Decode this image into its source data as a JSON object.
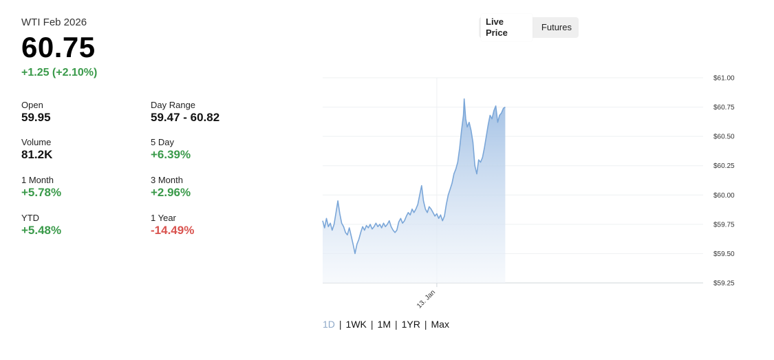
{
  "quote": {
    "instrument": "WTI Feb 2026",
    "price": "60.75",
    "change": "+1.25 (+2.10%)",
    "change_color": "#3a9a4a"
  },
  "stats": [
    {
      "label": "Open",
      "value": "59.95",
      "tone": "neutral"
    },
    {
      "label": "Day Range",
      "value": "59.47 - 60.82",
      "tone": "neutral"
    },
    {
      "label": "Volume",
      "value": "81.2K",
      "tone": "neutral"
    },
    {
      "label": "5 Day",
      "value": "+6.39%",
      "tone": "pos"
    },
    {
      "label": "1 Month",
      "value": "+5.78%",
      "tone": "pos"
    },
    {
      "label": "3 Month",
      "value": "+2.96%",
      "tone": "pos"
    },
    {
      "label": "YTD",
      "value": "+5.48%",
      "tone": "pos"
    },
    {
      "label": "1 Year",
      "value": "-14.49%",
      "tone": "neg"
    }
  ],
  "toggle": {
    "options": [
      "Live Price",
      "Futures"
    ],
    "selected": "Live Price"
  },
  "range_selector": {
    "options": [
      "1D",
      "1WK",
      "1M",
      "1YR",
      "Max"
    ],
    "selected": "1D"
  },
  "colors": {
    "positive": "#3a9a4a",
    "negative": "#d9534f",
    "line": "#7aa6d8",
    "area_top": "#9dbde3",
    "area_bottom": "#f2f6fb",
    "active_range": "#8fa9c8"
  },
  "chart_data": {
    "type": "area",
    "title": "",
    "xlabel": "",
    "ylabel": "",
    "x_ticks": [
      "13. Jan"
    ],
    "x_tick_positions": [
      0.3
    ],
    "y_tick_labels": [
      "$61.00",
      "$60.75",
      "$60.50",
      "$60.25",
      "$60.00",
      "$59.75",
      "$59.50",
      "$59.25"
    ],
    "ylim": [
      59.25,
      61.0
    ],
    "grid": true,
    "y_axis_side": "right",
    "session_extent": 0.48,
    "series": [
      {
        "points": [
          [
            0.0,
            59.78
          ],
          [
            0.005,
            59.72
          ],
          [
            0.01,
            59.8
          ],
          [
            0.015,
            59.73
          ],
          [
            0.02,
            59.76
          ],
          [
            0.025,
            59.7
          ],
          [
            0.03,
            59.75
          ],
          [
            0.035,
            59.85
          ],
          [
            0.04,
            59.95
          ],
          [
            0.045,
            59.84
          ],
          [
            0.05,
            59.76
          ],
          [
            0.055,
            59.73
          ],
          [
            0.06,
            59.68
          ],
          [
            0.065,
            59.66
          ],
          [
            0.07,
            59.72
          ],
          [
            0.075,
            59.65
          ],
          [
            0.08,
            59.58
          ],
          [
            0.085,
            59.5
          ],
          [
            0.09,
            59.58
          ],
          [
            0.095,
            59.62
          ],
          [
            0.1,
            59.68
          ],
          [
            0.105,
            59.73
          ],
          [
            0.11,
            59.7
          ],
          [
            0.115,
            59.74
          ],
          [
            0.12,
            59.72
          ],
          [
            0.125,
            59.75
          ],
          [
            0.13,
            59.71
          ],
          [
            0.135,
            59.73
          ],
          [
            0.14,
            59.76
          ],
          [
            0.145,
            59.73
          ],
          [
            0.15,
            59.75
          ],
          [
            0.155,
            59.72
          ],
          [
            0.16,
            59.76
          ],
          [
            0.165,
            59.73
          ],
          [
            0.17,
            59.75
          ],
          [
            0.175,
            59.78
          ],
          [
            0.18,
            59.73
          ],
          [
            0.185,
            59.7
          ],
          [
            0.19,
            59.68
          ],
          [
            0.195,
            59.7
          ],
          [
            0.2,
            59.77
          ],
          [
            0.205,
            59.8
          ],
          [
            0.21,
            59.76
          ],
          [
            0.215,
            59.78
          ],
          [
            0.22,
            59.82
          ],
          [
            0.225,
            59.85
          ],
          [
            0.23,
            59.83
          ],
          [
            0.235,
            59.88
          ],
          [
            0.24,
            59.85
          ],
          [
            0.245,
            59.88
          ],
          [
            0.25,
            59.92
          ],
          [
            0.255,
            60.0
          ],
          [
            0.26,
            60.08
          ],
          [
            0.265,
            59.95
          ],
          [
            0.27,
            59.88
          ],
          [
            0.275,
            59.85
          ],
          [
            0.28,
            59.9
          ],
          [
            0.285,
            59.88
          ],
          [
            0.29,
            59.85
          ],
          [
            0.295,
            59.82
          ],
          [
            0.3,
            59.84
          ],
          [
            0.305,
            59.8
          ],
          [
            0.31,
            59.83
          ],
          [
            0.315,
            59.78
          ],
          [
            0.32,
            59.82
          ],
          [
            0.325,
            59.92
          ],
          [
            0.33,
            60.0
          ],
          [
            0.335,
            60.05
          ],
          [
            0.34,
            60.1
          ],
          [
            0.345,
            60.18
          ],
          [
            0.35,
            60.22
          ],
          [
            0.355,
            60.28
          ],
          [
            0.36,
            60.4
          ],
          [
            0.365,
            60.55
          ],
          [
            0.37,
            60.68
          ],
          [
            0.372,
            60.82
          ],
          [
            0.376,
            60.65
          ],
          [
            0.38,
            60.58
          ],
          [
            0.385,
            60.62
          ],
          [
            0.39,
            60.55
          ],
          [
            0.395,
            60.45
          ],
          [
            0.4,
            60.25
          ],
          [
            0.405,
            60.18
          ],
          [
            0.41,
            60.3
          ],
          [
            0.415,
            60.28
          ],
          [
            0.42,
            60.32
          ],
          [
            0.425,
            60.4
          ],
          [
            0.43,
            60.5
          ],
          [
            0.435,
            60.6
          ],
          [
            0.44,
            60.68
          ],
          [
            0.445,
            60.65
          ],
          [
            0.45,
            60.72
          ],
          [
            0.455,
            60.76
          ],
          [
            0.46,
            60.62
          ],
          [
            0.465,
            60.68
          ],
          [
            0.47,
            60.7
          ],
          [
            0.475,
            60.74
          ],
          [
            0.48,
            60.75
          ]
        ]
      }
    ]
  }
}
